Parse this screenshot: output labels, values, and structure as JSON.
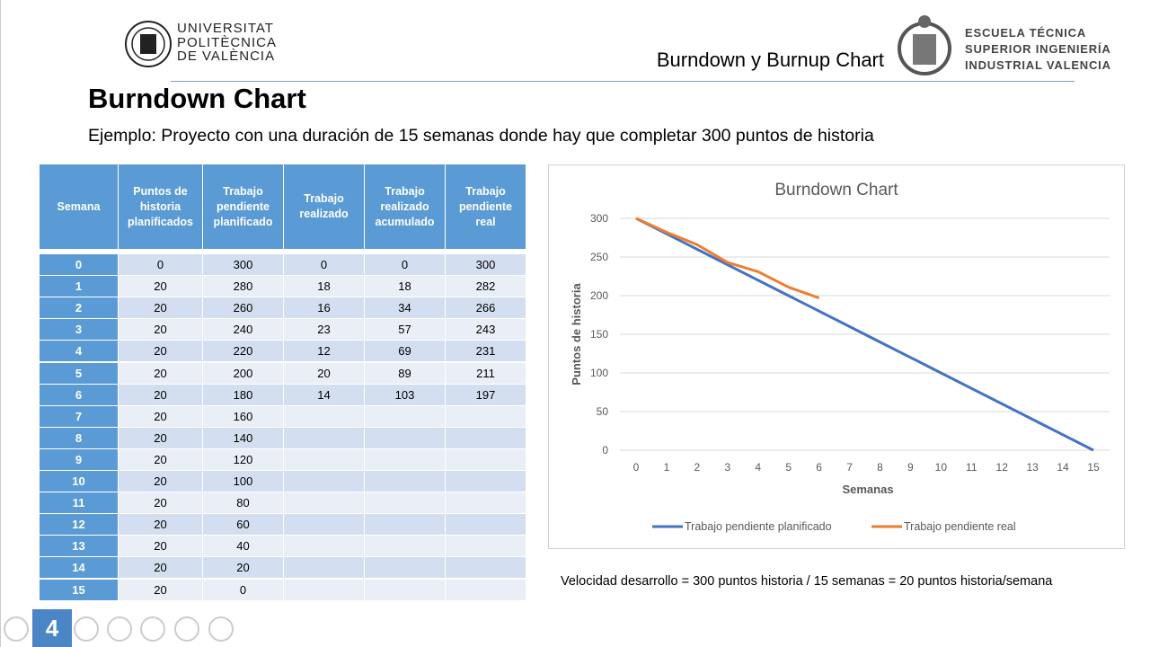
{
  "header": {
    "university": [
      "UNIVERSITAT",
      "POLITÈCNICA",
      "DE VALÈNCIA"
    ],
    "slide_title": "Burndown y Burnup Chart",
    "school": [
      "ESCUELA TÉCNICA",
      "SUPERIOR INGENIERÍA",
      "INDUSTRIAL VALENCIA"
    ]
  },
  "title": "Burndown Chart",
  "subtitle": "Ejemplo: Proyecto con una duración de 15 semanas donde hay que completar 300 puntos de historia",
  "table": {
    "columns": [
      "Semana",
      "Puntos de historia planificados",
      "Trabajo pendiente planificado",
      "Trabajo realizado",
      "Trabajo realizado acumulado",
      "Trabajo pendiente real"
    ],
    "rows": [
      [
        0,
        0,
        300,
        0,
        0,
        300
      ],
      [
        1,
        20,
        280,
        18,
        18,
        282
      ],
      [
        2,
        20,
        260,
        16,
        34,
        266
      ],
      [
        3,
        20,
        240,
        23,
        57,
        243
      ],
      [
        4,
        20,
        220,
        12,
        69,
        231
      ],
      [
        5,
        20,
        200,
        20,
        89,
        211
      ],
      [
        6,
        20,
        180,
        14,
        103,
        197
      ],
      [
        7,
        20,
        160,
        null,
        null,
        null
      ],
      [
        8,
        20,
        140,
        null,
        null,
        null
      ],
      [
        9,
        20,
        120,
        null,
        null,
        null
      ],
      [
        10,
        20,
        100,
        null,
        null,
        null
      ],
      [
        11,
        20,
        80,
        null,
        null,
        null
      ],
      [
        12,
        20,
        60,
        null,
        null,
        null
      ],
      [
        13,
        20,
        40,
        null,
        null,
        null
      ],
      [
        14,
        20,
        20,
        null,
        null,
        null
      ],
      [
        15,
        20,
        0,
        null,
        null,
        null
      ]
    ]
  },
  "chart_data": {
    "type": "line",
    "title": "Burndown Chart",
    "xlabel": "Semanas",
    "ylabel": "Puntos de historia",
    "x": [
      0,
      1,
      2,
      3,
      4,
      5,
      6,
      7,
      8,
      9,
      10,
      11,
      12,
      13,
      14,
      15
    ],
    "series": [
      {
        "name": "Trabajo pendiente planificado",
        "color": "#4472c4",
        "values": [
          300,
          280,
          260,
          240,
          220,
          200,
          180,
          160,
          140,
          120,
          100,
          80,
          60,
          40,
          20,
          0
        ]
      },
      {
        "name": "Trabajo pendiente real",
        "color": "#ed7d31",
        "values": [
          300,
          282,
          266,
          243,
          231,
          211,
          197,
          null,
          null,
          null,
          null,
          null,
          null,
          null,
          null,
          null
        ]
      }
    ],
    "xlim": [
      0,
      15
    ],
    "xticks": [
      0,
      1,
      2,
      3,
      4,
      5,
      6,
      7,
      8,
      9,
      10,
      11,
      12,
      13,
      14,
      15
    ],
    "ylim": [
      0,
      300
    ],
    "yticks": [
      0,
      50,
      100,
      150,
      200,
      250,
      300
    ],
    "grid": true,
    "legend": "bottom"
  },
  "note": "Velocidad desarrollo = 300 puntos historia / 15 semanas = 20 puntos historia/semana",
  "page_number": 4
}
